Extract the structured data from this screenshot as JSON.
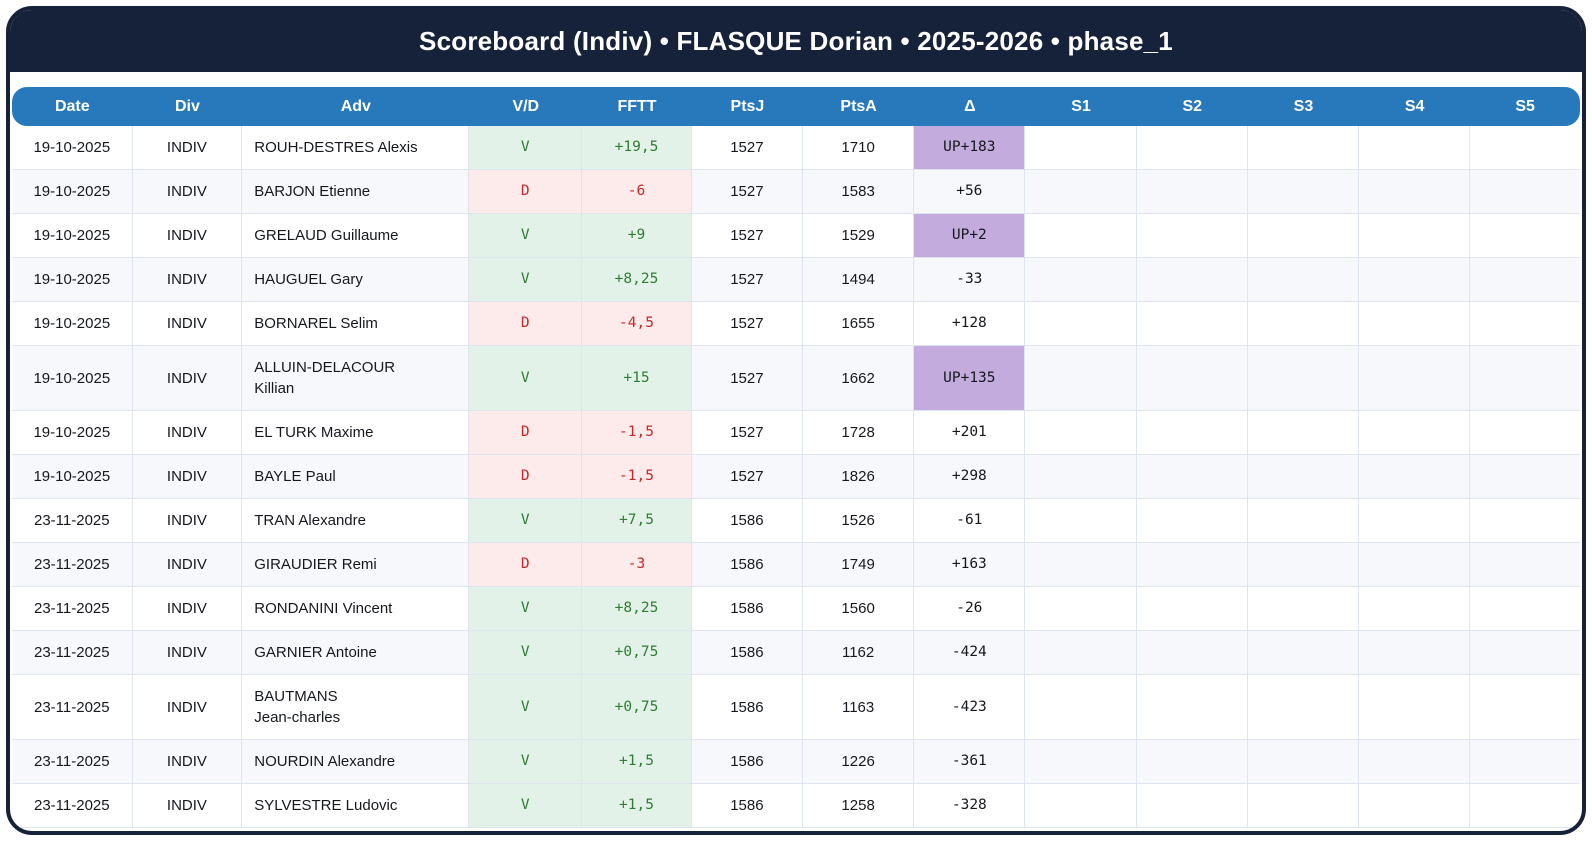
{
  "header": {
    "title": "Scoreboard (Indiv) • FLASQUE Dorian • 2025-2026 • phase_1"
  },
  "table": {
    "columns": [
      "Date",
      "Div",
      "Adv",
      "V/D",
      "FFTT",
      "PtsJ",
      "PtsA",
      "Δ",
      "S1",
      "S2",
      "S3",
      "S4",
      "S5"
    ],
    "rows": [
      {
        "date": "19-10-2025",
        "div": "INDIV",
        "adv": "ROUH-DESTRES Alexis",
        "vd": "V",
        "fftt": "+19,5",
        "ptsj": "1527",
        "ptsa": "1710",
        "delta": "UP+183",
        "s1": "",
        "s2": "",
        "s3": "",
        "s4": "",
        "s5": ""
      },
      {
        "date": "19-10-2025",
        "div": "INDIV",
        "adv": "BARJON Etienne",
        "vd": "D",
        "fftt": "-6",
        "ptsj": "1527",
        "ptsa": "1583",
        "delta": "+56",
        "s1": "",
        "s2": "",
        "s3": "",
        "s4": "",
        "s5": ""
      },
      {
        "date": "19-10-2025",
        "div": "INDIV",
        "adv": "GRELAUD Guillaume",
        "vd": "V",
        "fftt": "+9",
        "ptsj": "1527",
        "ptsa": "1529",
        "delta": "UP+2",
        "s1": "",
        "s2": "",
        "s3": "",
        "s4": "",
        "s5": ""
      },
      {
        "date": "19-10-2025",
        "div": "INDIV",
        "adv": "HAUGUEL Gary",
        "vd": "V",
        "fftt": "+8,25",
        "ptsj": "1527",
        "ptsa": "1494",
        "delta": "-33",
        "s1": "",
        "s2": "",
        "s3": "",
        "s4": "",
        "s5": ""
      },
      {
        "date": "19-10-2025",
        "div": "INDIV",
        "adv": "BORNAREL Selim",
        "vd": "D",
        "fftt": "-4,5",
        "ptsj": "1527",
        "ptsa": "1655",
        "delta": "+128",
        "s1": "",
        "s2": "",
        "s3": "",
        "s4": "",
        "s5": ""
      },
      {
        "date": "19-10-2025",
        "div": "INDIV",
        "adv": "ALLUIN-DELACOUR\nKillian",
        "vd": "V",
        "fftt": "+15",
        "ptsj": "1527",
        "ptsa": "1662",
        "delta": "UP+135",
        "s1": "",
        "s2": "",
        "s3": "",
        "s4": "",
        "s5": ""
      },
      {
        "date": "19-10-2025",
        "div": "INDIV",
        "adv": "EL TURK Maxime",
        "vd": "D",
        "fftt": "-1,5",
        "ptsj": "1527",
        "ptsa": "1728",
        "delta": "+201",
        "s1": "",
        "s2": "",
        "s3": "",
        "s4": "",
        "s5": ""
      },
      {
        "date": "19-10-2025",
        "div": "INDIV",
        "adv": "BAYLE Paul",
        "vd": "D",
        "fftt": "-1,5",
        "ptsj": "1527",
        "ptsa": "1826",
        "delta": "+298",
        "s1": "",
        "s2": "",
        "s3": "",
        "s4": "",
        "s5": ""
      },
      {
        "date": "23-11-2025",
        "div": "INDIV",
        "adv": "TRAN Alexandre",
        "vd": "V",
        "fftt": "+7,5",
        "ptsj": "1586",
        "ptsa": "1526",
        "delta": "-61",
        "s1": "",
        "s2": "",
        "s3": "",
        "s4": "",
        "s5": ""
      },
      {
        "date": "23-11-2025",
        "div": "INDIV",
        "adv": "GIRAUDIER Remi",
        "vd": "D",
        "fftt": "-3",
        "ptsj": "1586",
        "ptsa": "1749",
        "delta": "+163",
        "s1": "",
        "s2": "",
        "s3": "",
        "s4": "",
        "s5": ""
      },
      {
        "date": "23-11-2025",
        "div": "INDIV",
        "adv": "RONDANINI Vincent",
        "vd": "V",
        "fftt": "+8,25",
        "ptsj": "1586",
        "ptsa": "1560",
        "delta": "-26",
        "s1": "",
        "s2": "",
        "s3": "",
        "s4": "",
        "s5": ""
      },
      {
        "date": "23-11-2025",
        "div": "INDIV",
        "adv": "GARNIER Antoine",
        "vd": "V",
        "fftt": "+0,75",
        "ptsj": "1586",
        "ptsa": "1162",
        "delta": "-424",
        "s1": "",
        "s2": "",
        "s3": "",
        "s4": "",
        "s5": ""
      },
      {
        "date": "23-11-2025",
        "div": "INDIV",
        "adv": "BAUTMANS\nJean-charles",
        "vd": "V",
        "fftt": "+0,75",
        "ptsj": "1586",
        "ptsa": "1163",
        "delta": "-423",
        "s1": "",
        "s2": "",
        "s3": "",
        "s4": "",
        "s5": ""
      },
      {
        "date": "23-11-2025",
        "div": "INDIV",
        "adv": "NOURDIN Alexandre",
        "vd": "V",
        "fftt": "+1,5",
        "ptsj": "1586",
        "ptsa": "1226",
        "delta": "-361",
        "s1": "",
        "s2": "",
        "s3": "",
        "s4": "",
        "s5": ""
      },
      {
        "date": "23-11-2025",
        "div": "INDIV",
        "adv": "SYLVESTRE Ludovic",
        "vd": "V",
        "fftt": "+1,5",
        "ptsj": "1586",
        "ptsa": "1258",
        "delta": "-328",
        "s1": "",
        "s2": "",
        "s3": "",
        "s4": "",
        "s5": ""
      }
    ]
  },
  "colors": {
    "navy": "#16213A",
    "accent": "#2779BB",
    "win_bg": "#E3F2E8",
    "win_text": "#2E7D32",
    "loss_bg": "#FDEAEA",
    "loss_text": "#C62828",
    "up_bg": "#C4ABDD",
    "row_alt": "#F7F8FC",
    "grid": "#DFE5F0"
  }
}
